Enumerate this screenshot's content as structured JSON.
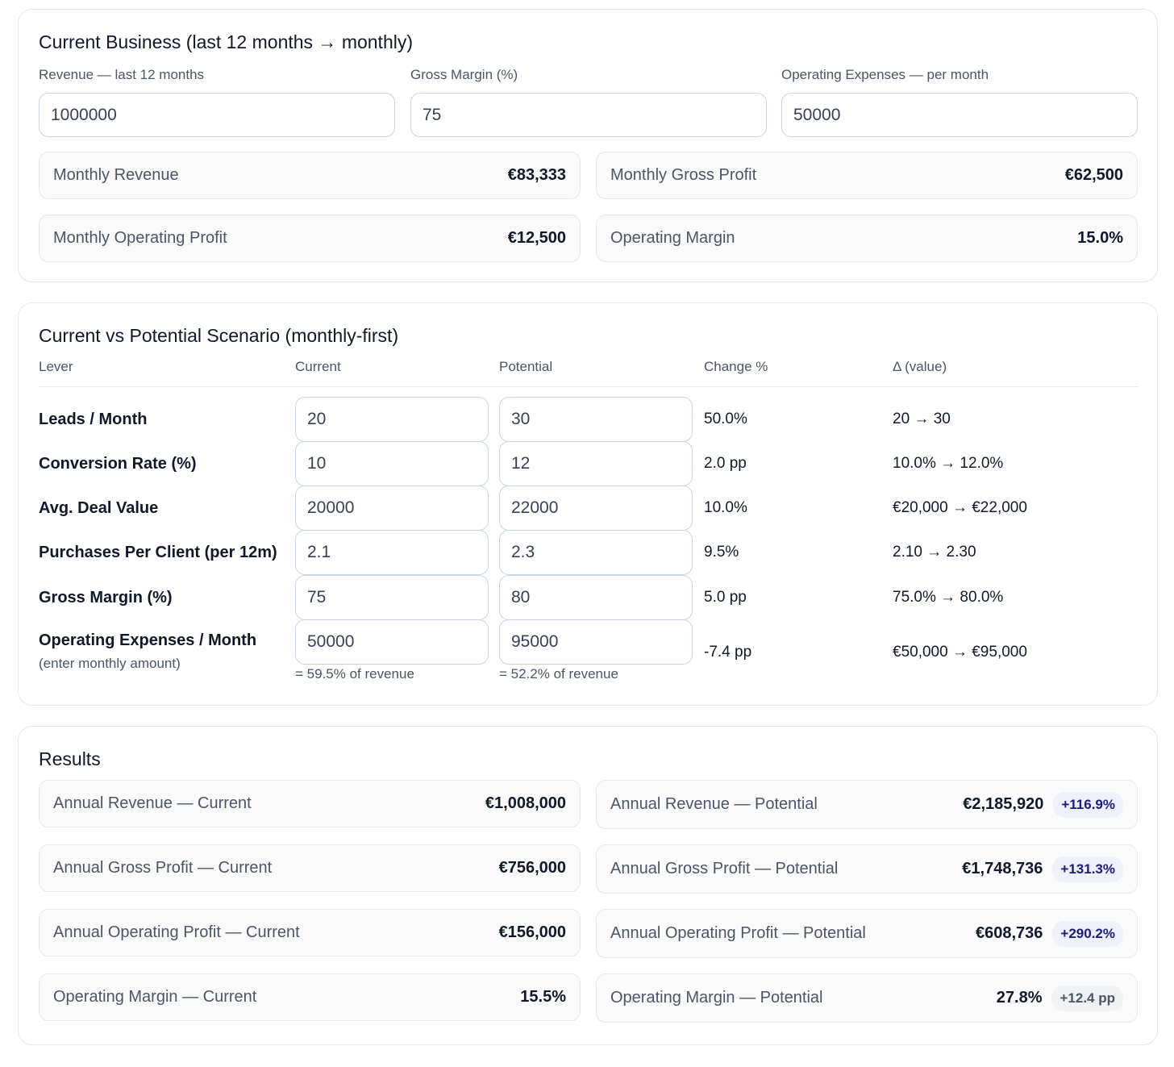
{
  "current_business": {
    "title": "Current Business (last 12 months → monthly)",
    "fields": [
      {
        "label": "Revenue — last 12 months",
        "value": "1000000"
      },
      {
        "label": "Gross Margin (%)",
        "value": "75"
      },
      {
        "label": "Operating Expenses — per month",
        "value": "50000"
      }
    ],
    "stats": [
      {
        "label": "Monthly Revenue",
        "value": "€83,333"
      },
      {
        "label": "Monthly Gross Profit",
        "value": "€62,500"
      },
      {
        "label": "Monthly Operating Profit",
        "value": "€12,500"
      },
      {
        "label": "Operating Margin",
        "value": "15.0%"
      }
    ]
  },
  "scenario": {
    "title": "Current vs Potential Scenario (monthly-first)",
    "columns": [
      "Lever",
      "Current",
      "Potential",
      "Change %",
      "Δ (value)"
    ],
    "rows": [
      {
        "lever": "Leads / Month",
        "current": "20",
        "potential": "30",
        "change": "50.0%",
        "delta": "20 → 30"
      },
      {
        "lever": "Conversion Rate (%)",
        "current": "10",
        "potential": "12",
        "change": "2.0 pp",
        "delta": "10.0% → 12.0%"
      },
      {
        "lever": "Avg. Deal Value",
        "current": "20000",
        "potential": "22000",
        "change": "10.0%",
        "delta": "€20,000 → €22,000"
      },
      {
        "lever": "Purchases Per Client (per 12m)",
        "current": "2.1",
        "potential": "2.3",
        "change": "9.5%",
        "delta": "2.10 → 2.30"
      },
      {
        "lever": "Gross Margin (%)",
        "current": "75",
        "potential": "80",
        "change": "5.0 pp",
        "delta": "75.0% → 80.0%"
      },
      {
        "lever": "Operating Expenses / Month",
        "sublabel": "(enter monthly amount)",
        "current": "50000",
        "potential": "95000",
        "change": "-7.4 pp",
        "delta": "€50,000 → €95,000",
        "current_note": "= 59.5% of revenue",
        "potential_note": "= 52.2% of revenue"
      }
    ]
  },
  "results": {
    "title": "Results",
    "current": [
      {
        "label": "Annual Revenue — Current",
        "value": "€1,008,000"
      },
      {
        "label": "Annual Gross Profit — Current",
        "value": "€756,000"
      },
      {
        "label": "Annual Operating Profit — Current",
        "value": "€156,000"
      },
      {
        "label": "Operating Margin — Current",
        "value": "15.5%"
      }
    ],
    "potential": [
      {
        "label": "Annual Revenue — Potential",
        "value": "€2,185,920",
        "badge": "+116.9%"
      },
      {
        "label": "Annual Gross Profit — Potential",
        "value": "€1,748,736",
        "badge": "+131.3%"
      },
      {
        "label": "Annual Operating Profit — Potential",
        "value": "€608,736",
        "badge": "+290.2%"
      },
      {
        "label": "Operating Margin — Potential",
        "value": "27.8%",
        "badge": "+12.4 pp"
      }
    ]
  }
}
